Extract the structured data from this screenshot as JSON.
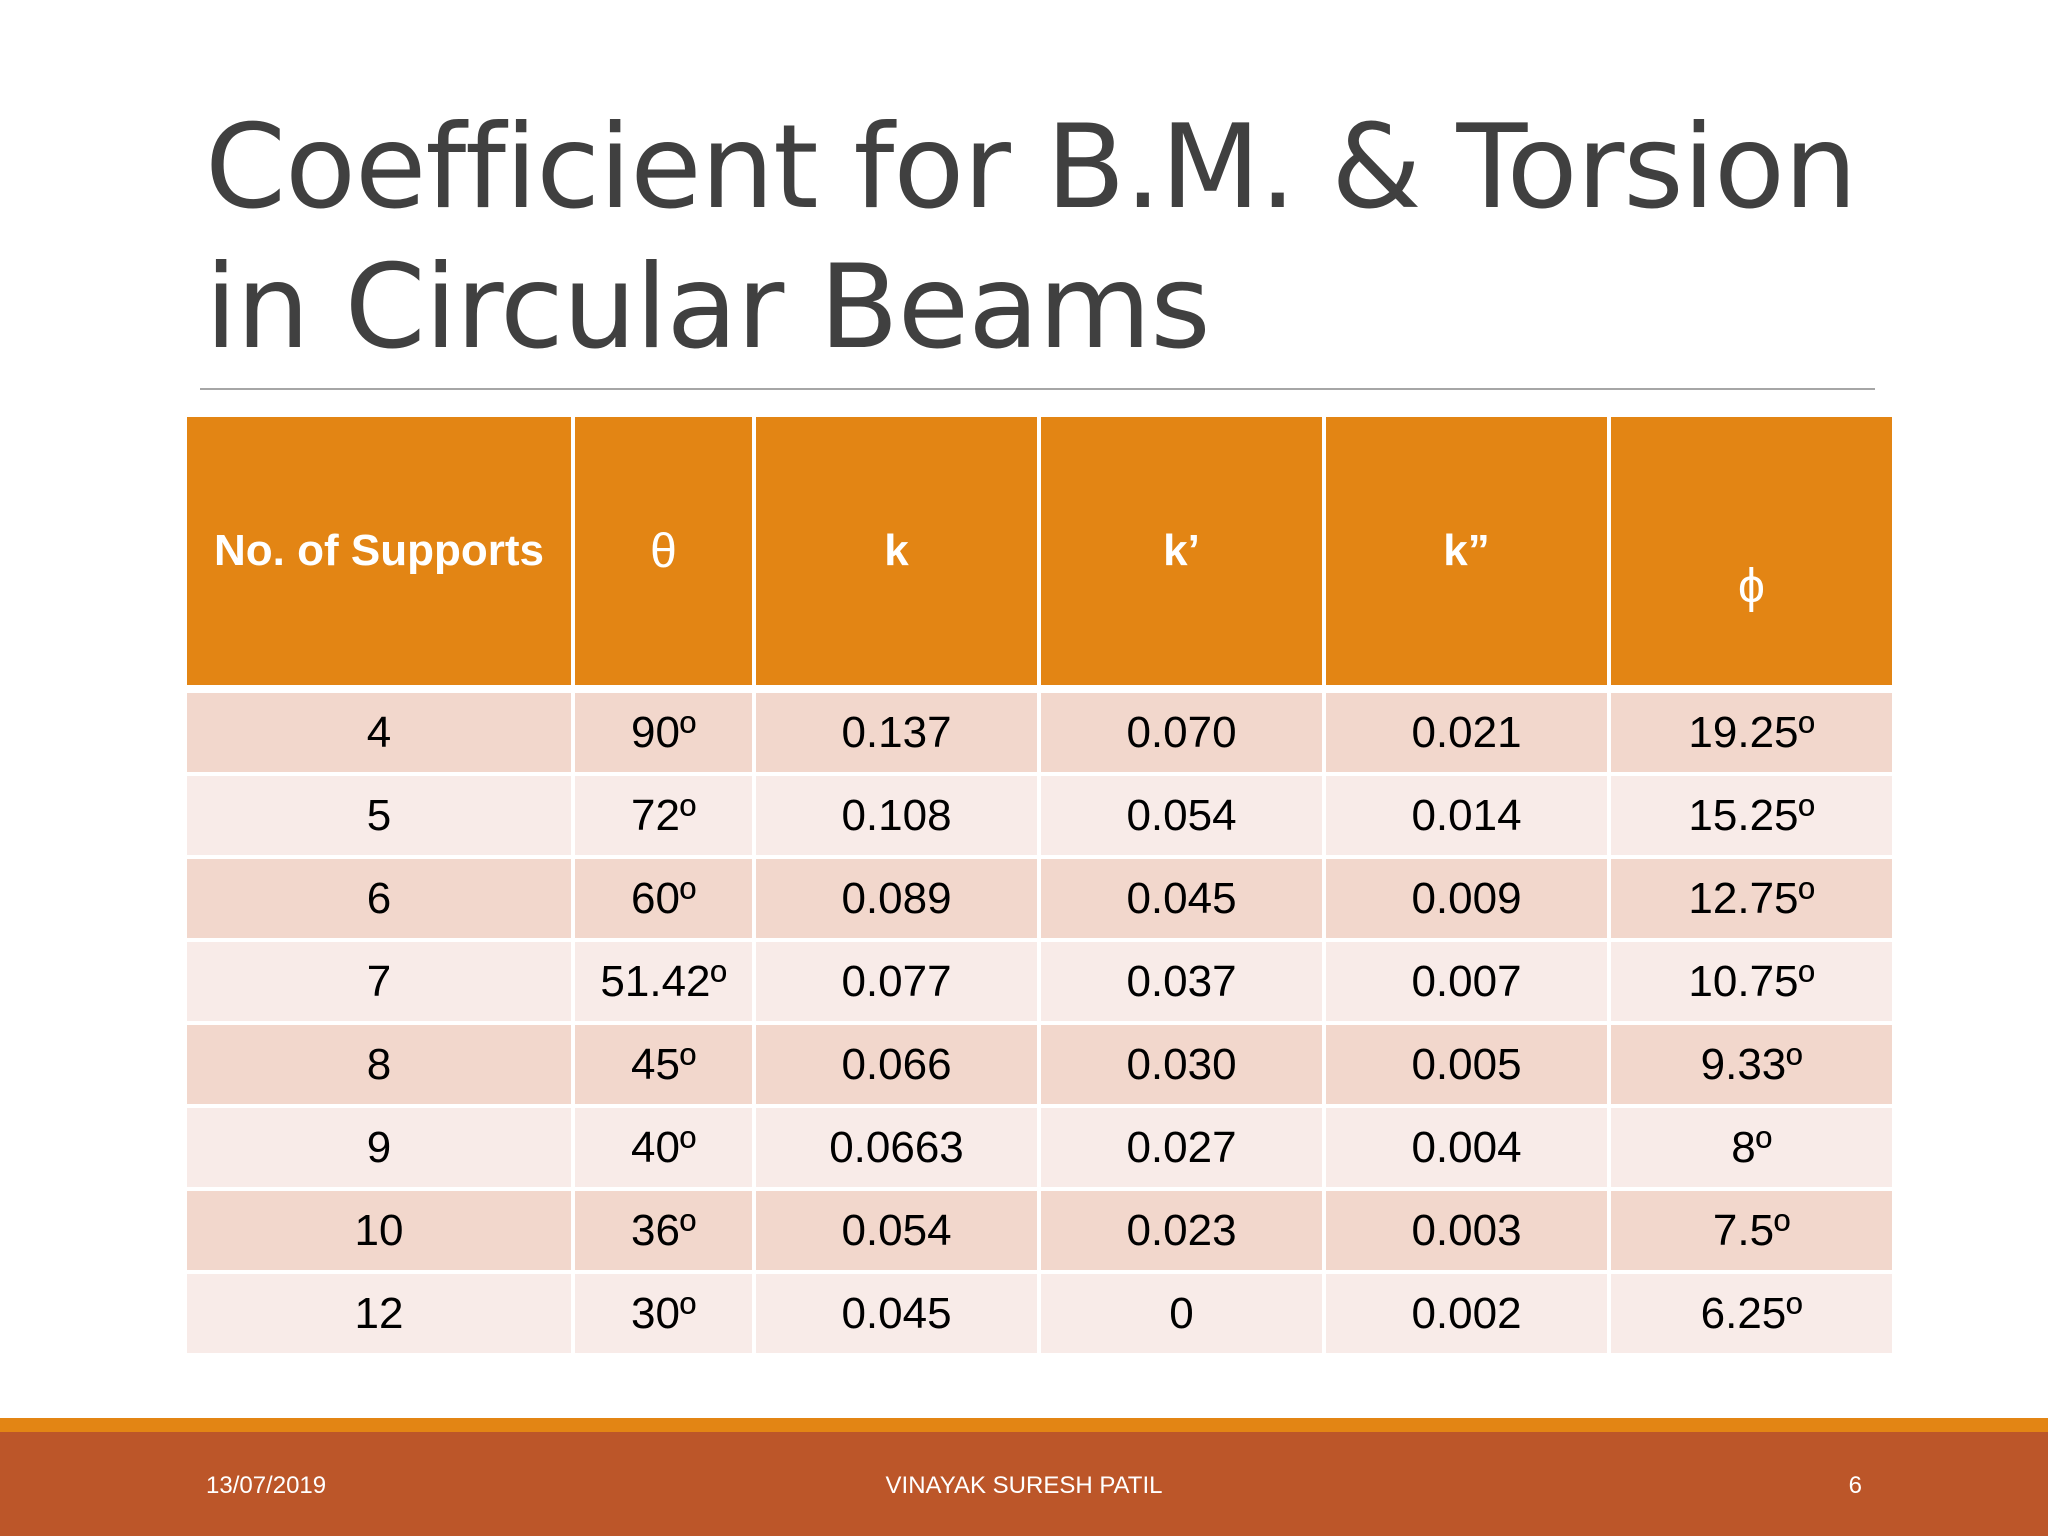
{
  "slide": {
    "title_line1": "Coefficient for B.M. & Torsion",
    "title_line2": "in Circular Beams"
  },
  "table": {
    "headers": [
      "No. of Supports",
      "θ",
      "k",
      "k’",
      "k”",
      "ϕ"
    ],
    "rows": [
      [
        "4",
        "90º",
        "0.137",
        "0.070",
        "0.021",
        "19.25º"
      ],
      [
        "5",
        "72º",
        "0.108",
        "0.054",
        "0.014",
        "15.25º"
      ],
      [
        "6",
        "60º",
        "0.089",
        "0.045",
        "0.009",
        "12.75º"
      ],
      [
        "7",
        "51.42º",
        "0.077",
        "0.037",
        "0.007",
        "10.75º"
      ],
      [
        "8",
        "45º",
        "0.066",
        "0.030",
        "0.005",
        "9.33º"
      ],
      [
        "9",
        "40º",
        "0.0663",
        "0.027",
        "0.004",
        "8º"
      ],
      [
        "10",
        "36º",
        "0.054",
        "0.023",
        "0.003",
        "7.5º"
      ],
      [
        "12",
        "30º",
        "0.045",
        "0",
        "0.002",
        "6.25º"
      ]
    ]
  },
  "footer": {
    "date": "13/07/2019",
    "author": "VINAYAK SURESH PATIL",
    "page": "6"
  },
  "colors": {
    "header_bg": "#e38514",
    "row_dark": "#f2d7cc",
    "row_light": "#f8ebe8",
    "footer_bg": "#bc5629",
    "title_text": "#404040"
  }
}
